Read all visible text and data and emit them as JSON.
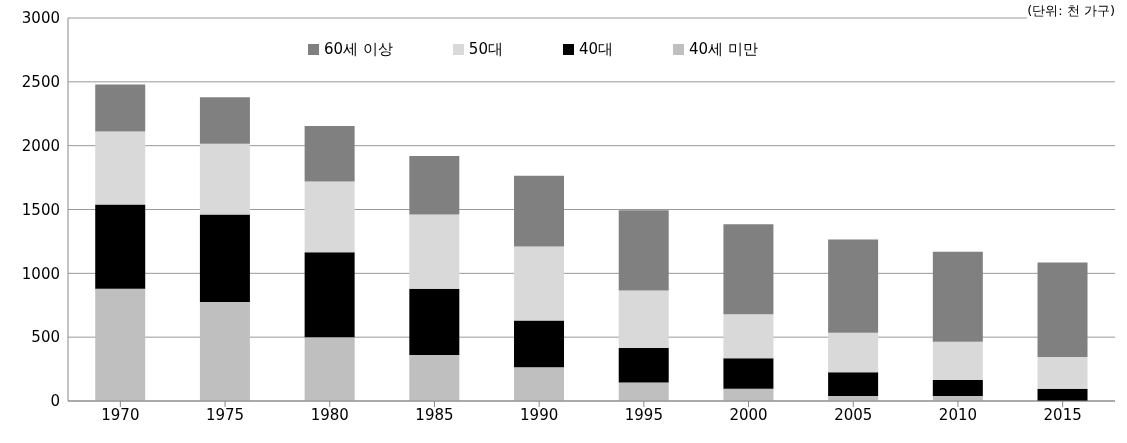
{
  "chart_data": {
    "type": "bar",
    "stacked": true,
    "categories": [
      "1970",
      "1975",
      "1980",
      "1985",
      "1990",
      "1995",
      "2000",
      "2005",
      "2010",
      "2015"
    ],
    "series": [
      {
        "name": "40세 미만",
        "color": "#bfbfbf",
        "values": [
          880,
          775,
          500,
          360,
          265,
          145,
          95,
          40,
          40,
          0
        ]
      },
      {
        "name": "40대",
        "color": "#000000",
        "values": [
          660,
          685,
          665,
          520,
          365,
          270,
          240,
          185,
          125,
          95
        ]
      },
      {
        "name": "50대",
        "color": "#d9d9d9",
        "values": [
          570,
          555,
          555,
          580,
          580,
          450,
          345,
          310,
          300,
          250
        ]
      },
      {
        "name": "60세 이상",
        "color": "#808080",
        "values": [
          370,
          365,
          435,
          460,
          555,
          630,
          705,
          730,
          705,
          740
        ]
      }
    ],
    "ylim": [
      0,
      3000
    ],
    "yticks": [
      0,
      500,
      1000,
      1500,
      2000,
      2500,
      3000
    ],
    "grid": "y",
    "legend": "top",
    "annotations": [
      "(단위: 천 가구)"
    ]
  }
}
